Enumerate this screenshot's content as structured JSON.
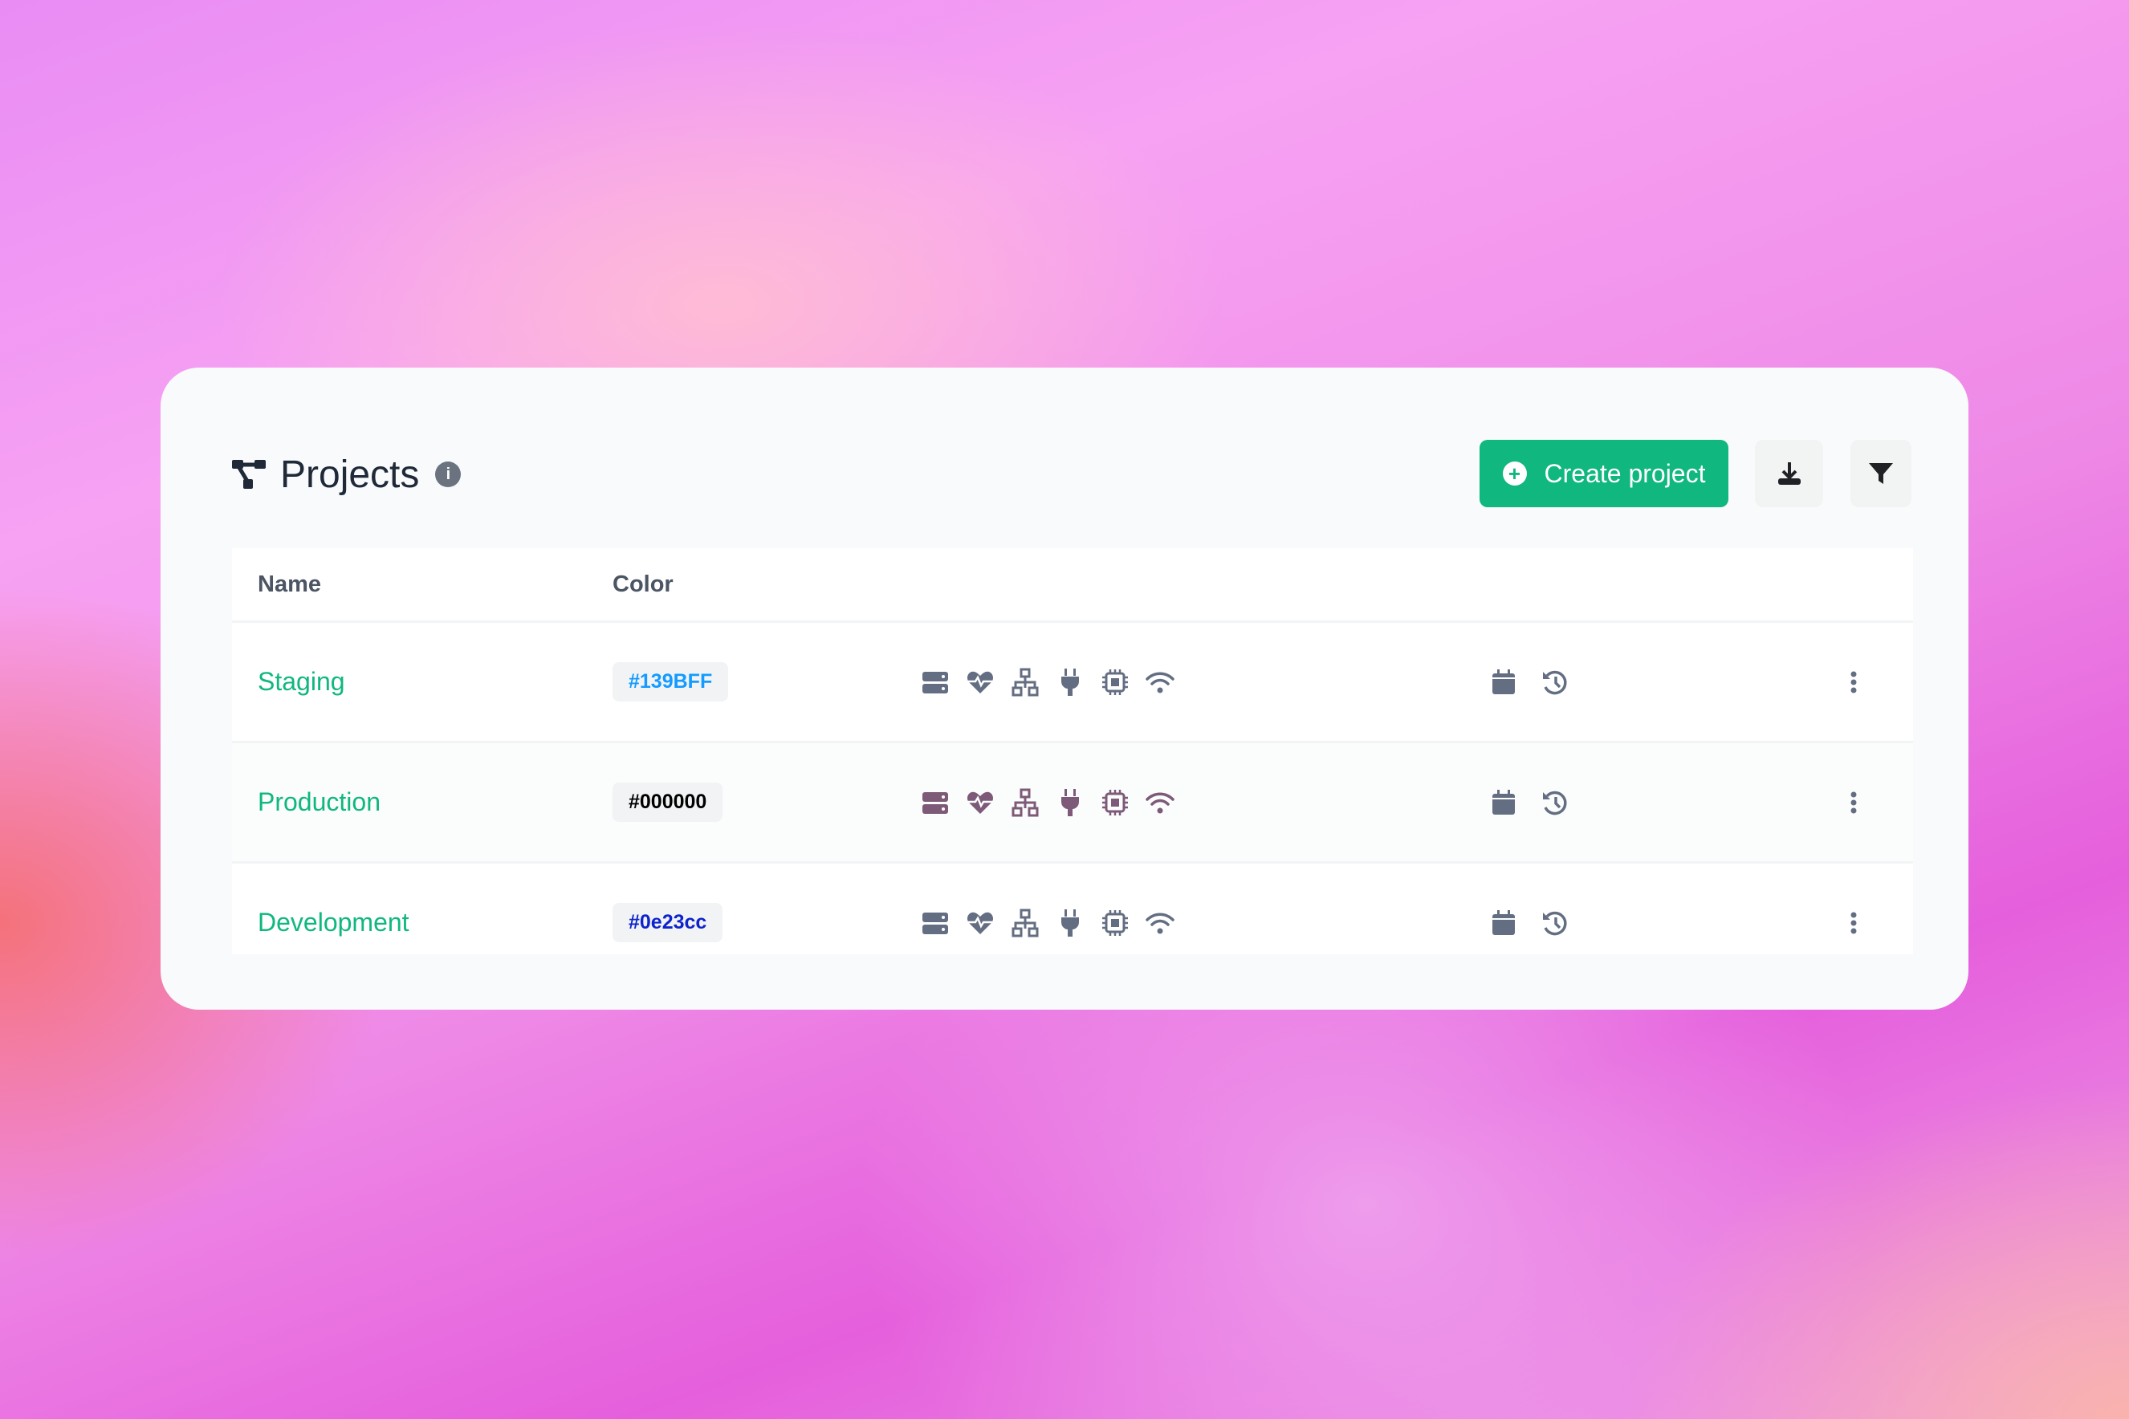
{
  "header": {
    "title": "Projects",
    "info_icon": "info-circle-icon",
    "create_label": "Create project",
    "download_icon": "download-icon",
    "filter_icon": "filter-icon"
  },
  "table": {
    "columns": [
      "Name",
      "Color"
    ],
    "rows": [
      {
        "name": "Staging",
        "color": "#139BFF",
        "icon_color": "#646e82"
      },
      {
        "name": "Production",
        "color": "#000000",
        "icon_color": "#7c5a78"
      },
      {
        "name": "Development",
        "color": "#0e23cc",
        "icon_color": "#646e82"
      }
    ],
    "row_icons": [
      "server-icon",
      "heartbeat-icon",
      "network-icon",
      "plug-icon",
      "chip-icon",
      "wifi-icon",
      "calendar-icon",
      "history-icon",
      "more-vertical-icon"
    ]
  },
  "colors": {
    "accent": "#10b77f"
  }
}
